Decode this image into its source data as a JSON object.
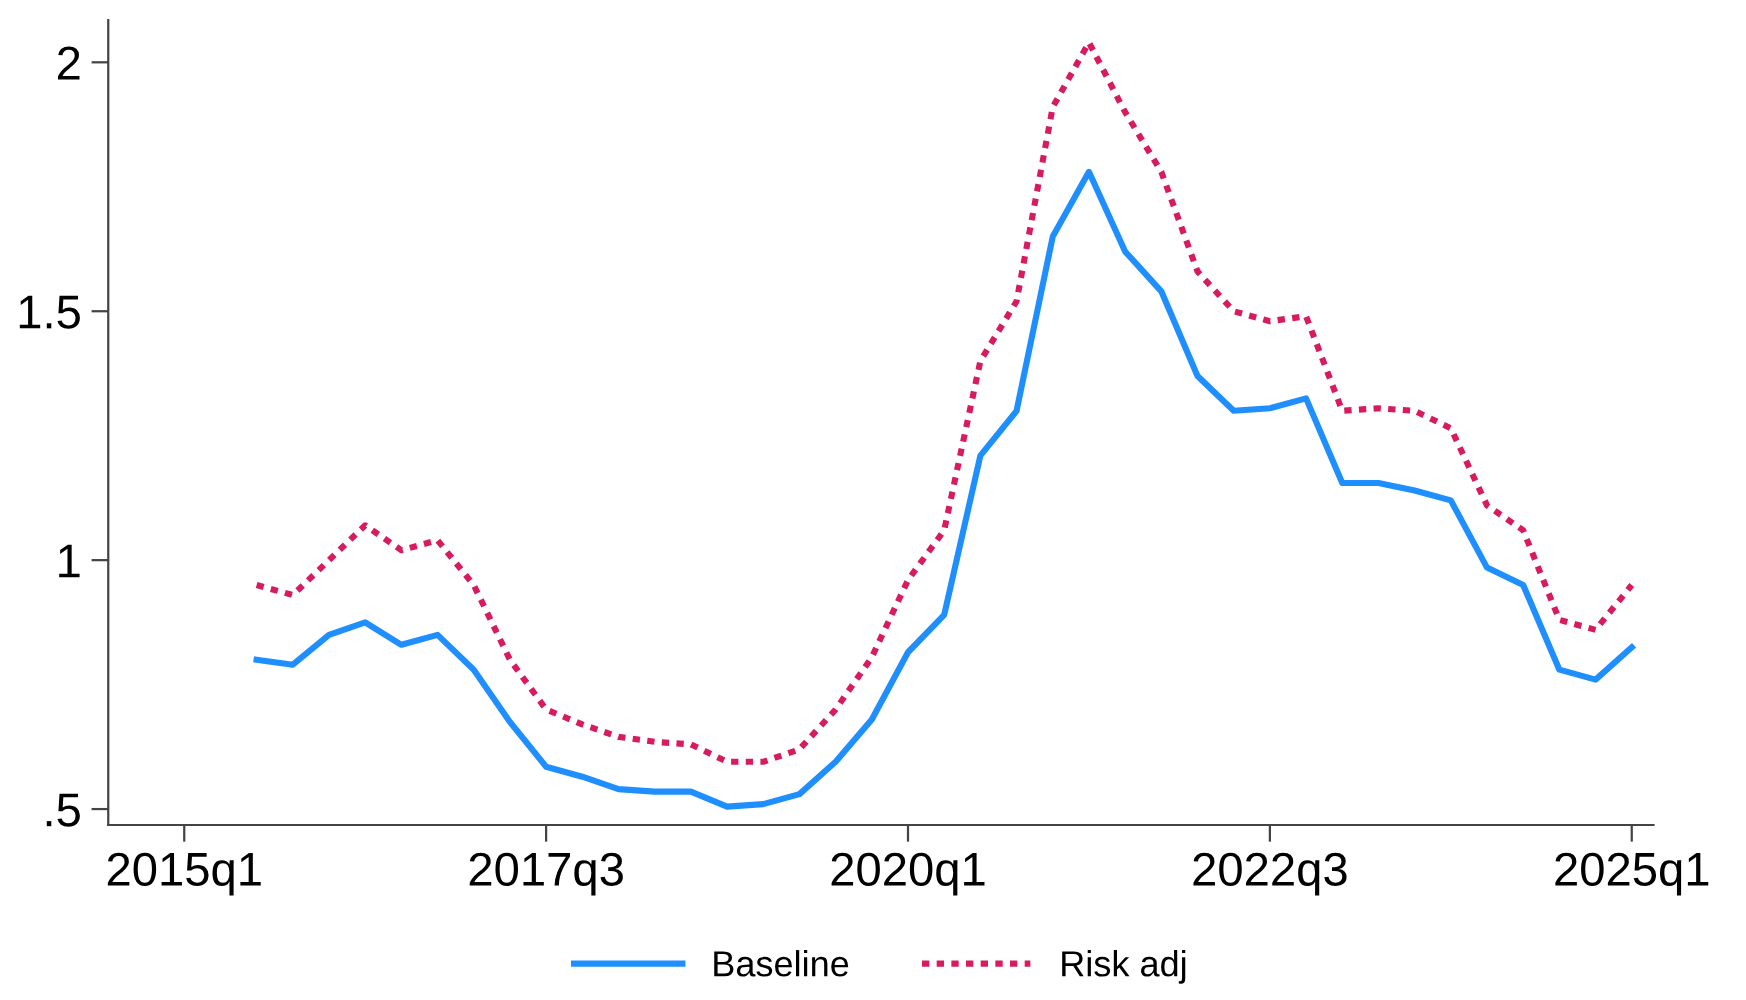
{
  "chart_data": {
    "type": "line",
    "categories": [
      "2015q1",
      null,
      null,
      null,
      null,
      null,
      null,
      null,
      null,
      null,
      "2017q3",
      null,
      null,
      null,
      null,
      null,
      null,
      null,
      null,
      null,
      "2020q1",
      null,
      null,
      null,
      null,
      null,
      null,
      null,
      null,
      null,
      "2022q3",
      null,
      null,
      null,
      null,
      null,
      null,
      null,
      null,
      null,
      "2025q1"
    ],
    "series": [
      {
        "name": "Baseline",
        "color": "#1f8fff",
        "line_style": "solid",
        "values": [
          null,
          null,
          0.8,
          0.79,
          0.85,
          0.875,
          0.83,
          0.85,
          0.78,
          0.675,
          0.585,
          0.565,
          0.54,
          0.535,
          0.535,
          0.505,
          0.51,
          0.53,
          0.595,
          0.68,
          0.815,
          0.89,
          1.21,
          1.3,
          1.65,
          1.78,
          1.62,
          1.54,
          1.37,
          1.3,
          1.305,
          1.325,
          1.155,
          1.155,
          1.14,
          1.12,
          0.985,
          0.95,
          0.78,
          0.76,
          0.825
        ]
      },
      {
        "name": "Risk adj",
        "color": "#d81b60",
        "line_style": "dotted",
        "values": [
          null,
          null,
          0.95,
          0.93,
          1.0,
          1.07,
          1.02,
          1.04,
          0.95,
          0.8,
          0.7,
          0.67,
          0.645,
          0.635,
          0.63,
          0.595,
          0.595,
          0.62,
          0.7,
          0.805,
          0.96,
          1.06,
          1.4,
          1.52,
          1.91,
          2.04,
          1.9,
          1.78,
          1.58,
          1.5,
          1.48,
          1.49,
          1.3,
          1.305,
          1.3,
          1.265,
          1.11,
          1.06,
          0.88,
          0.86,
          0.95
        ]
      }
    ],
    "ylim": [
      0.468,
      2.085
    ],
    "yticks": [
      {
        "value": 0.5,
        "label": ".5"
      },
      1,
      1.5,
      2
    ],
    "grid": false,
    "legend": "bottom"
  }
}
